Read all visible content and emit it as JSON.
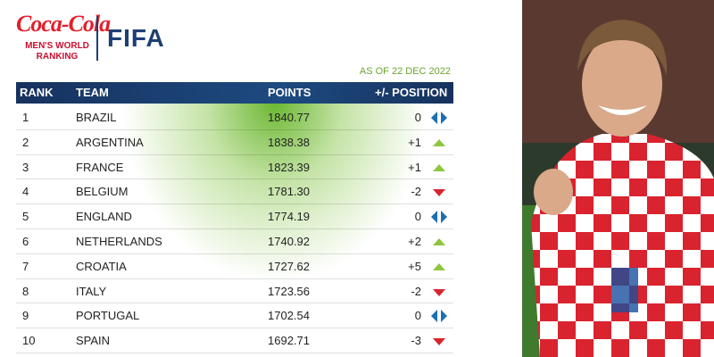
{
  "brand": {
    "sponsor": "Coca-Cola",
    "ranking": "MEN'S WORLD RANKING",
    "org": "FIFA"
  },
  "date": "AS OF 22 DEC 2022",
  "table": {
    "columns": [
      "RANK",
      "TEAM",
      "POINTS",
      "+/- POSITION"
    ],
    "rows": [
      [
        "1",
        "BRAZIL",
        "1840.77",
        "0"
      ],
      [
        "2",
        "ARGENTINA",
        "1838.38",
        "+1"
      ],
      [
        "3",
        "FRANCE",
        "1823.39",
        "+1"
      ],
      [
        "4",
        "BELGIUM",
        "1781.30",
        "-2"
      ],
      [
        "5",
        "ENGLAND",
        "1774.19",
        "0"
      ],
      [
        "6",
        "NETHERLANDS",
        "1740.92",
        "+2"
      ],
      [
        "7",
        "CROATIA",
        "1727.62",
        "+5"
      ],
      [
        "8",
        "ITALY",
        "1723.56",
        "-2"
      ],
      [
        "9",
        "PORTUGAL",
        "1702.54",
        "0"
      ],
      [
        "10",
        "SPAIN",
        "1692.71",
        "-3"
      ]
    ]
  }
}
